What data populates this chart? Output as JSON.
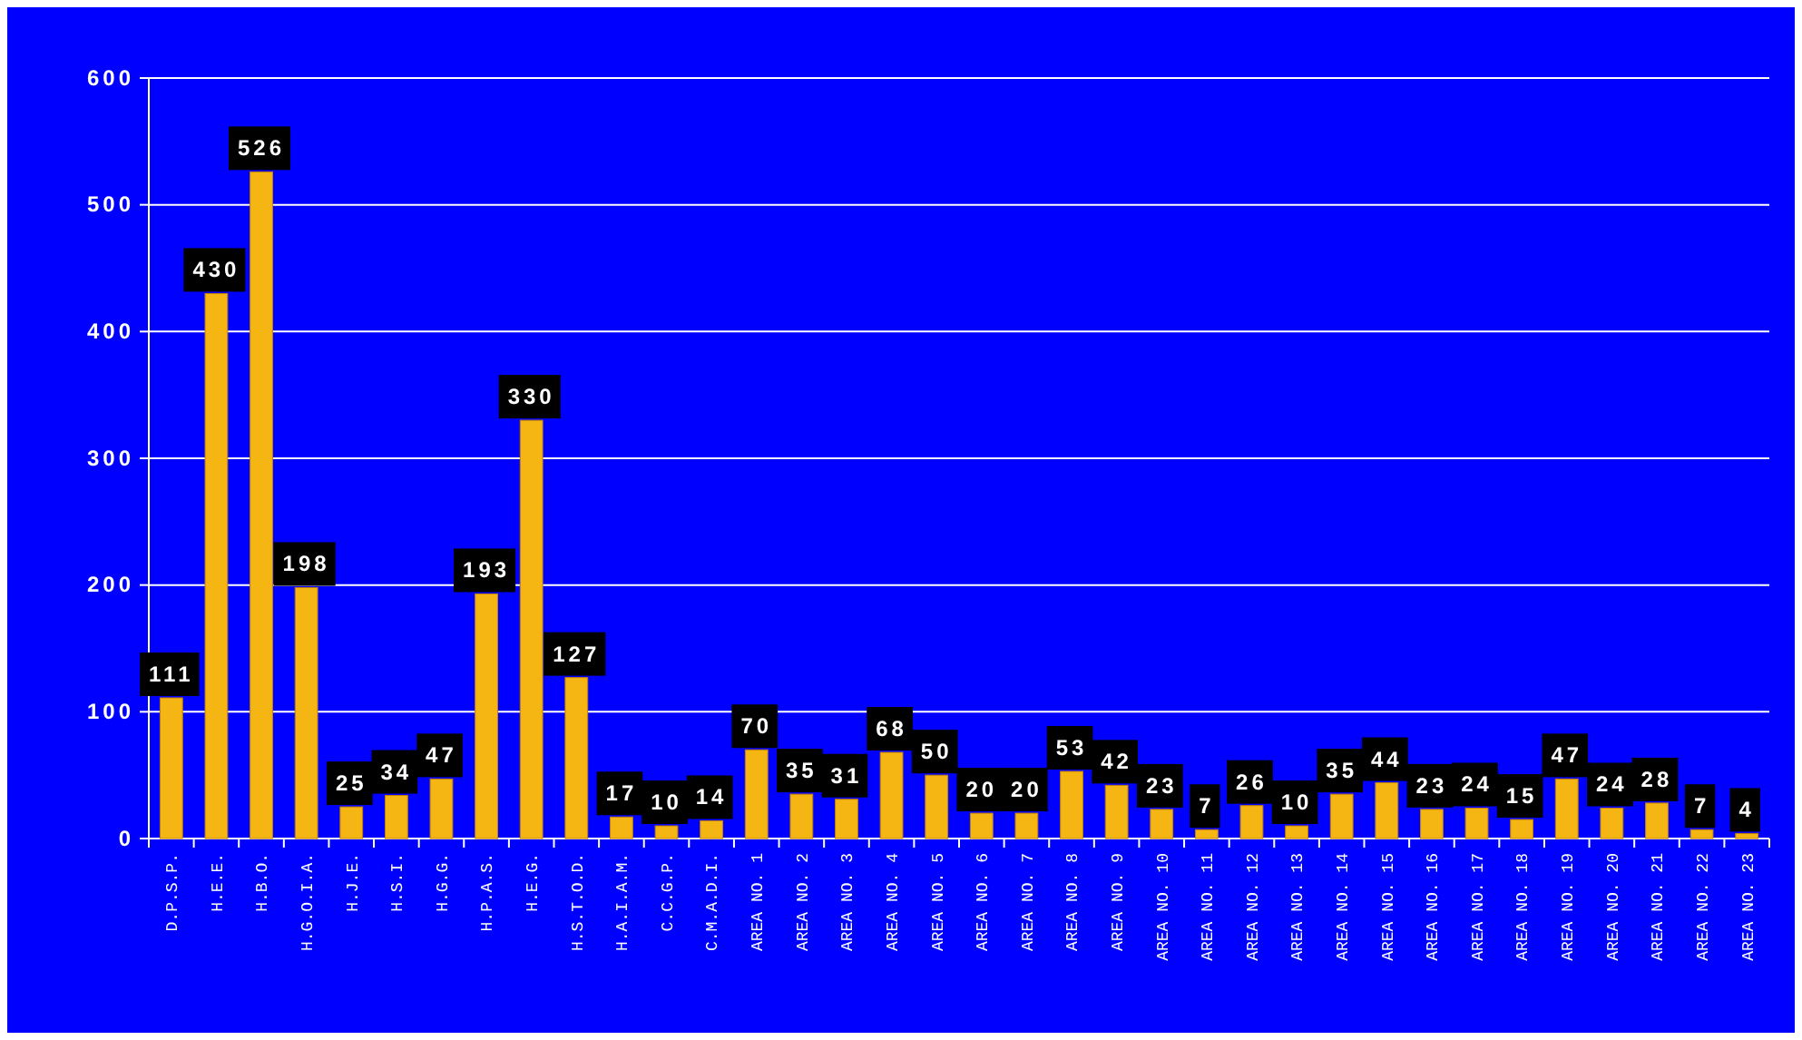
{
  "chart_data": {
    "type": "bar",
    "categories": [
      "D.P.S.P.",
      "H.E.E.",
      "H.B.O.",
      "H.G.O.I.A.",
      "H.J.E.",
      "H.S.I.",
      "H.G.G.",
      "H.P.A.S.",
      "H.E.G.",
      "H.S.T.O.D.",
      "H.A.I.A.M.",
      "C.C.G.P.",
      "C.M.A.D.I.",
      "AREA NO. 1",
      "AREA NO. 2",
      "AREA NO. 3",
      "AREA NO. 4",
      "AREA NO. 5",
      "AREA NO. 6",
      "AREA NO. 7",
      "AREA NO. 8",
      "AREA NO. 9",
      "AREA NO. 10",
      "AREA NO. 11",
      "AREA NO. 12",
      "AREA NO. 13",
      "AREA NO. 14",
      "AREA NO. 15",
      "AREA NO. 16",
      "AREA NO. 17",
      "AREA NO. 18",
      "AREA NO. 19",
      "AREA NO. 20",
      "AREA NO. 21",
      "AREA NO. 22",
      "AREA NO. 23"
    ],
    "values": [
      111,
      430,
      526,
      198,
      25,
      34,
      47,
      193,
      330,
      127,
      17,
      10,
      14,
      70,
      35,
      31,
      68,
      50,
      20,
      20,
      53,
      42,
      23,
      7,
      26,
      10,
      35,
      44,
      23,
      24,
      15,
      47,
      24,
      28,
      7,
      4
    ],
    "color": "#f5b512",
    "ylim": [
      0,
      600
    ],
    "yticks": [
      0,
      100,
      200,
      300,
      400,
      500,
      600
    ],
    "grid": "y",
    "data_labels": true
  }
}
